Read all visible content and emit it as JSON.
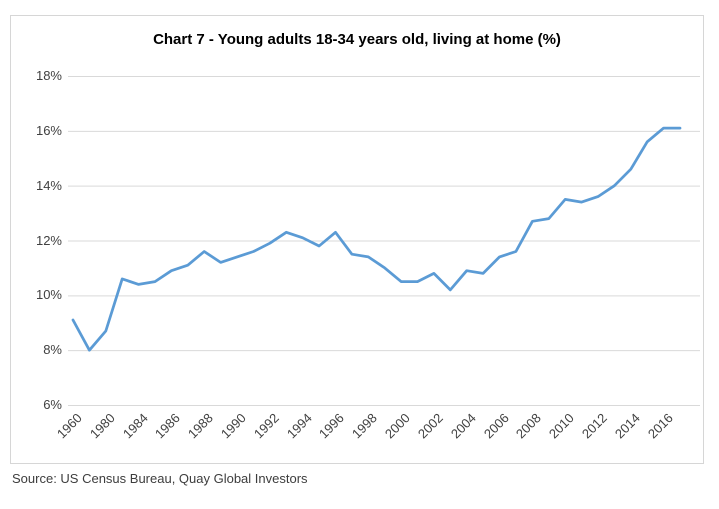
{
  "chart": {
    "title": "Chart 7 - Young adults 18-34 years old, living at home (%)",
    "source": "Source: US Census Bureau, Quay Global Investors"
  },
  "colors": {
    "line": "#5B9BD5",
    "gridline": "#d9d9d9",
    "frame_border": "#d6d6d6",
    "tick_text": "#404040"
  },
  "chart_data": {
    "type": "line",
    "title": "Chart 7 - Young adults 18-34 years old, living at home (%)",
    "xlabel": "",
    "ylabel": "",
    "ylim": [
      6,
      18
    ],
    "y_ticks": [
      18,
      16,
      14,
      12,
      10,
      8,
      6
    ],
    "y_tick_suffix": "%",
    "grid": "horizontal",
    "legend": "none",
    "label_every": 2,
    "x_tick_labels_shown": [
      "1960",
      "1980",
      "1984",
      "1986",
      "1988",
      "1990",
      "1992",
      "1994",
      "1996",
      "1998",
      "2000",
      "2002",
      "2004",
      "2006",
      "2008",
      "2010",
      "2012",
      "2014",
      "2016"
    ],
    "categories": [
      "1960",
      "1970",
      "1980",
      "1983",
      "1984",
      "1985",
      "1986",
      "1987",
      "1988",
      "1989",
      "1990",
      "1991",
      "1992",
      "1993",
      "1994",
      "1995",
      "1996",
      "1997",
      "1998",
      "1999",
      "2000",
      "2001",
      "2002",
      "2003",
      "2004",
      "2005",
      "2006",
      "2007",
      "2008",
      "2009",
      "2010",
      "2011",
      "2012",
      "2013",
      "2014",
      "2015",
      "2016",
      "2017"
    ],
    "values": [
      9.1,
      8.0,
      8.7,
      10.6,
      10.4,
      10.5,
      10.9,
      11.1,
      11.6,
      11.2,
      11.4,
      11.6,
      11.9,
      12.3,
      12.1,
      11.8,
      12.3,
      11.5,
      11.4,
      11.0,
      10.5,
      10.5,
      10.8,
      10.2,
      10.9,
      10.8,
      11.4,
      11.6,
      12.7,
      12.8,
      13.5,
      13.4,
      13.6,
      14.0,
      14.6,
      15.6,
      16.1,
      16.1
    ],
    "line_color": "#5B9BD5"
  }
}
